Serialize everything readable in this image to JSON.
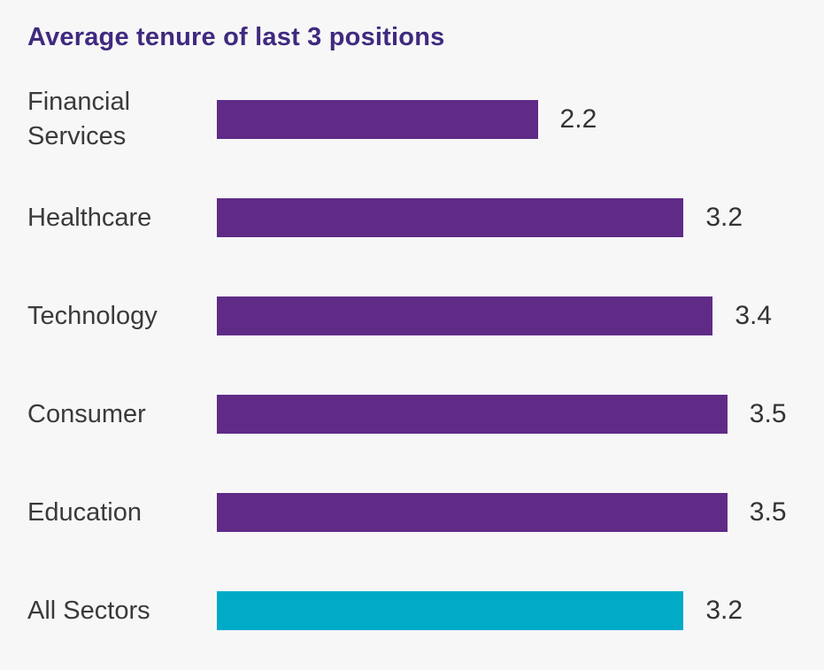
{
  "title": "Average tenure of last 3 positions",
  "colors": {
    "background": "#f7f7f8",
    "title": "#3f2a7e",
    "label": "#3a3a3a",
    "value": "#333333",
    "bar_sector": "#5f2b87",
    "bar_all_sectors": "#00abc8"
  },
  "chart_data": {
    "type": "bar",
    "orientation": "horizontal",
    "title": "Average tenure of last 3 positions",
    "categories": [
      "Financial Services",
      "Healthcare",
      "Technology",
      "Consumer",
      "Education",
      "All Sectors"
    ],
    "values": [
      2.2,
      3.2,
      3.4,
      3.5,
      3.5,
      3.2
    ],
    "xlim": [
      0,
      3.5
    ],
    "grid": false,
    "legend": false,
    "value_labels_shown": true,
    "rows": [
      {
        "label": "Financial Services",
        "value": 2.2,
        "value_label": "2.2",
        "color": "#5f2b87"
      },
      {
        "label": "Healthcare",
        "value": 3.2,
        "value_label": "3.2",
        "color": "#5f2b87"
      },
      {
        "label": "Technology",
        "value": 3.4,
        "value_label": "3.4",
        "color": "#5f2b87"
      },
      {
        "label": "Consumer",
        "value": 3.5,
        "value_label": "3.5",
        "color": "#5f2b87"
      },
      {
        "label": "Education",
        "value": 3.5,
        "value_label": "3.5",
        "color": "#5f2b87"
      },
      {
        "label": "All Sectors",
        "value": 3.2,
        "value_label": "3.2",
        "color": "#00abc8"
      }
    ]
  }
}
